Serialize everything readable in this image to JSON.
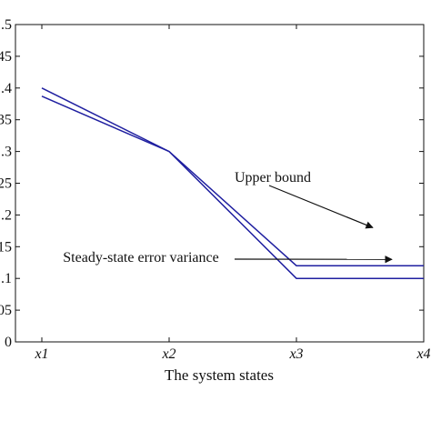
{
  "chart_data": {
    "type": "line",
    "title": "",
    "xlabel": "The system states",
    "ylabel": "",
    "categories": [
      "x1",
      "x2",
      "x3",
      "x4"
    ],
    "series": [
      {
        "values": [
          0.4,
          0.3,
          0.12,
          0.12
        ],
        "color": "#1f1fa0"
      },
      {
        "values": [
          0.387,
          0.3,
          0.1,
          0.1
        ],
        "color": "#1f1fa0"
      }
    ],
    "ylim": [
      0,
      0.5
    ],
    "ytick_labels": [
      ".5",
      ".45",
      ".4",
      ".35",
      ".3",
      ".25",
      ".2",
      ".15",
      ".1",
      ".05",
      "0"
    ],
    "grid": false,
    "annotations": [
      {
        "text": "Upper bound",
        "series": 0,
        "points_to": [
          2.6,
          0.18
        ]
      },
      {
        "text": "Steady-state error variance",
        "series": 1,
        "points_to": [
          2.75,
          0.13
        ]
      }
    ]
  }
}
